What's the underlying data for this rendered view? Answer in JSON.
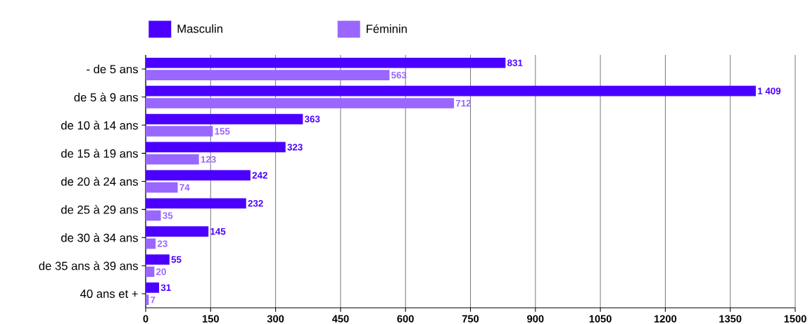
{
  "chart_data": {
    "type": "bar",
    "orientation": "horizontal",
    "categories": [
      "- de 5 ans",
      "de 5 à 9 ans",
      "de 10 à 14 ans",
      "de 15 à 19 ans",
      "de 20 à 24 ans",
      "de 25 à 29 ans",
      "de 30 à 34 ans",
      "de 35 ans à 39 ans",
      "40 ans et +"
    ],
    "series": [
      {
        "name": "Masculin",
        "color": "#4b00ff",
        "values": [
          831,
          1409,
          363,
          323,
          242,
          232,
          145,
          55,
          31
        ],
        "value_labels": [
          "831",
          "1 409",
          "363",
          "323",
          "242",
          "232",
          "145",
          "55",
          "31"
        ]
      },
      {
        "name": "Féminin",
        "color": "#9966ff",
        "values": [
          563,
          712,
          155,
          123,
          74,
          35,
          23,
          20,
          7
        ],
        "value_labels": [
          "563",
          "712",
          "155",
          "123",
          "74",
          "35",
          "23",
          "20",
          "7"
        ]
      }
    ],
    "xlim": [
      0,
      1500
    ],
    "xticks": [
      0,
      150,
      300,
      450,
      600,
      750,
      900,
      1050,
      1200,
      1350,
      1500
    ],
    "grid": "x",
    "legend": "top left"
  }
}
